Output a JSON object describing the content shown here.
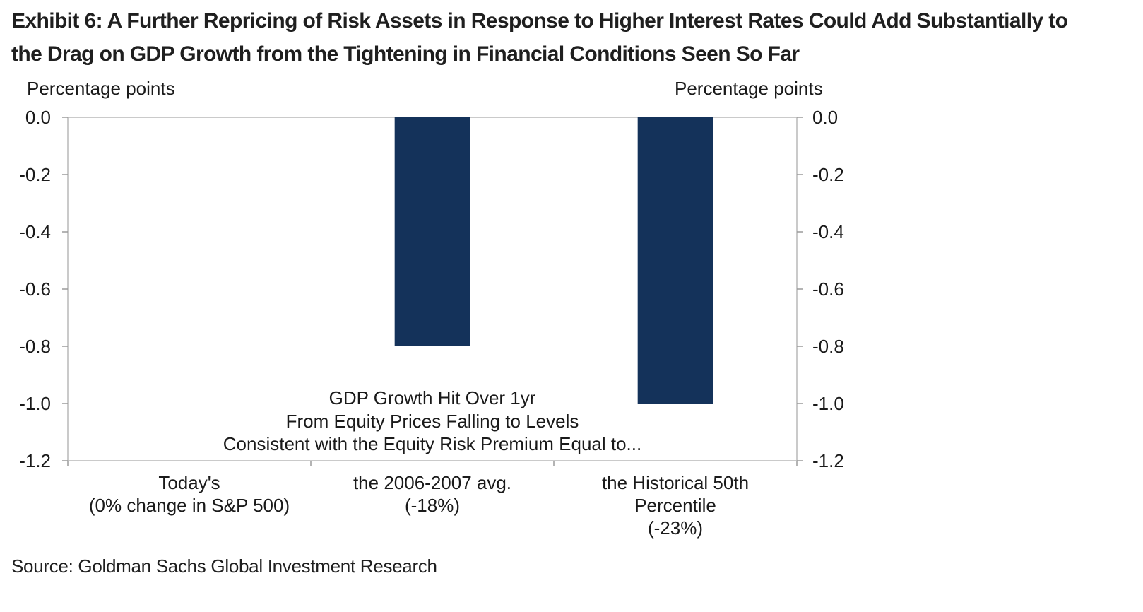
{
  "title_lines": [
    "Exhibit 6: A Further Repricing of Risk Assets in Response to Higher Interest Rates Could Add Substantially to",
    "the Drag on GDP Growth from the Tightening in Financial Conditions Seen So Far"
  ],
  "source": "Source: Goldman Sachs Global Investment Research",
  "chart_data": {
    "type": "bar",
    "categories": [
      [
        "Today's",
        "(0% change in S&P 500)"
      ],
      [
        "the 2006-2007 avg.",
        "(-18%)"
      ],
      [
        "the Historical 50th",
        "Percentile",
        "(-23%)"
      ]
    ],
    "values": [
      0.0,
      -0.8,
      -1.0
    ],
    "ylabel_left": "Percentage  points",
    "ylabel_right": "Percentage  points",
    "ylim": [
      -1.2,
      0.0
    ],
    "yticks": [
      0.0,
      -0.2,
      -0.4,
      -0.6,
      -0.8,
      -1.0,
      -1.2
    ],
    "ytick_labels": [
      "0.0",
      "-0.2",
      "-0.4",
      "-0.6",
      "-0.8",
      "-1.0",
      "-1.2"
    ],
    "annotation": [
      "GDP Growth Hit Over  1yr",
      "From Equity Prices Falling to Levels",
      "Consistent  with the Equity Risk Premium Equal to..."
    ],
    "bar_color": "#14325a",
    "grid": false
  }
}
